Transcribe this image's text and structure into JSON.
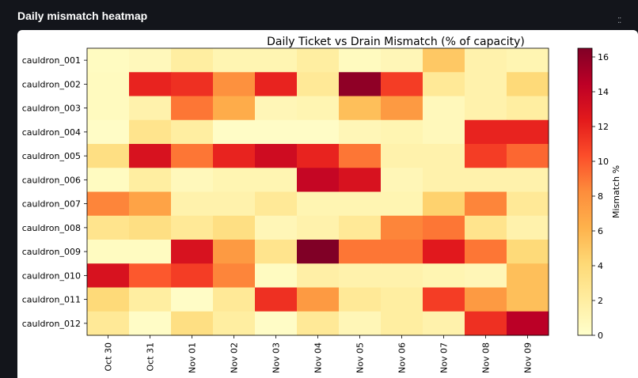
{
  "panel": {
    "title": "Daily mismatch heatmap",
    "handle_icon": "drag-handle-icon"
  },
  "chart_data": {
    "type": "heatmap",
    "title": "Daily Ticket vs Drain Mismatch (% of capacity)",
    "xlabel": "",
    "ylabel": "",
    "x": [
      "Oct 30",
      "Oct 31",
      "Nov 01",
      "Nov 02",
      "Nov 03",
      "Nov 04",
      "Nov 05",
      "Nov 06",
      "Nov 07",
      "Nov 08",
      "Nov 09"
    ],
    "y": [
      "cauldron_001",
      "cauldron_002",
      "cauldron_003",
      "cauldron_004",
      "cauldron_005",
      "cauldron_006",
      "cauldron_007",
      "cauldron_008",
      "cauldron_009",
      "cauldron_010",
      "cauldron_011",
      "cauldron_012"
    ],
    "values": [
      [
        0.5,
        0.8,
        2.0,
        1.2,
        1.2,
        2.0,
        0.6,
        1.0,
        5.0,
        1.5,
        1.2
      ],
      [
        0.6,
        12.0,
        11.5,
        8.0,
        12.0,
        2.5,
        16.0,
        11.0,
        2.5,
        1.5,
        4.0
      ],
      [
        0.6,
        1.5,
        9.0,
        6.5,
        1.0,
        1.2,
        5.5,
        7.5,
        0.8,
        1.5,
        2.0
      ],
      [
        0.3,
        3.0,
        2.0,
        0.3,
        0.3,
        0.3,
        1.0,
        1.2,
        0.8,
        12.0,
        12.0
      ],
      [
        3.5,
        13.0,
        9.0,
        12.0,
        13.5,
        12.0,
        9.0,
        1.5,
        1.5,
        11.0,
        9.5
      ],
      [
        0.5,
        2.0,
        0.8,
        1.2,
        1.2,
        14.0,
        13.0,
        1.0,
        1.5,
        1.5,
        1.5
      ],
      [
        8.5,
        7.0,
        1.5,
        1.5,
        2.5,
        1.2,
        1.2,
        1.2,
        4.5,
        8.5,
        2.5
      ],
      [
        3.0,
        3.5,
        2.5,
        3.5,
        1.0,
        1.5,
        2.5,
        8.5,
        9.0,
        3.0,
        1.5
      ],
      [
        0.5,
        0.5,
        13.0,
        7.5,
        3.0,
        16.5,
        9.0,
        9.0,
        12.5,
        9.0,
        4.0
      ],
      [
        13.0,
        10.0,
        11.0,
        8.5,
        0.5,
        1.8,
        1.5,
        1.5,
        1.2,
        1.0,
        5.5
      ],
      [
        4.0,
        2.0,
        0.3,
        2.5,
        11.5,
        7.5,
        2.5,
        2.0,
        11.0,
        7.5,
        5.5
      ],
      [
        2.5,
        0.3,
        3.5,
        2.0,
        0.3,
        2.5,
        1.0,
        2.0,
        1.5,
        11.5,
        14.5
      ]
    ],
    "colorbar": {
      "label": "Mismatch %",
      "vmin": 0,
      "vmax": 16.5,
      "ticks": [
        0,
        2,
        4,
        6,
        8,
        10,
        12,
        14,
        16
      ]
    },
    "colormap": "YlOrRd",
    "grid": false
  }
}
